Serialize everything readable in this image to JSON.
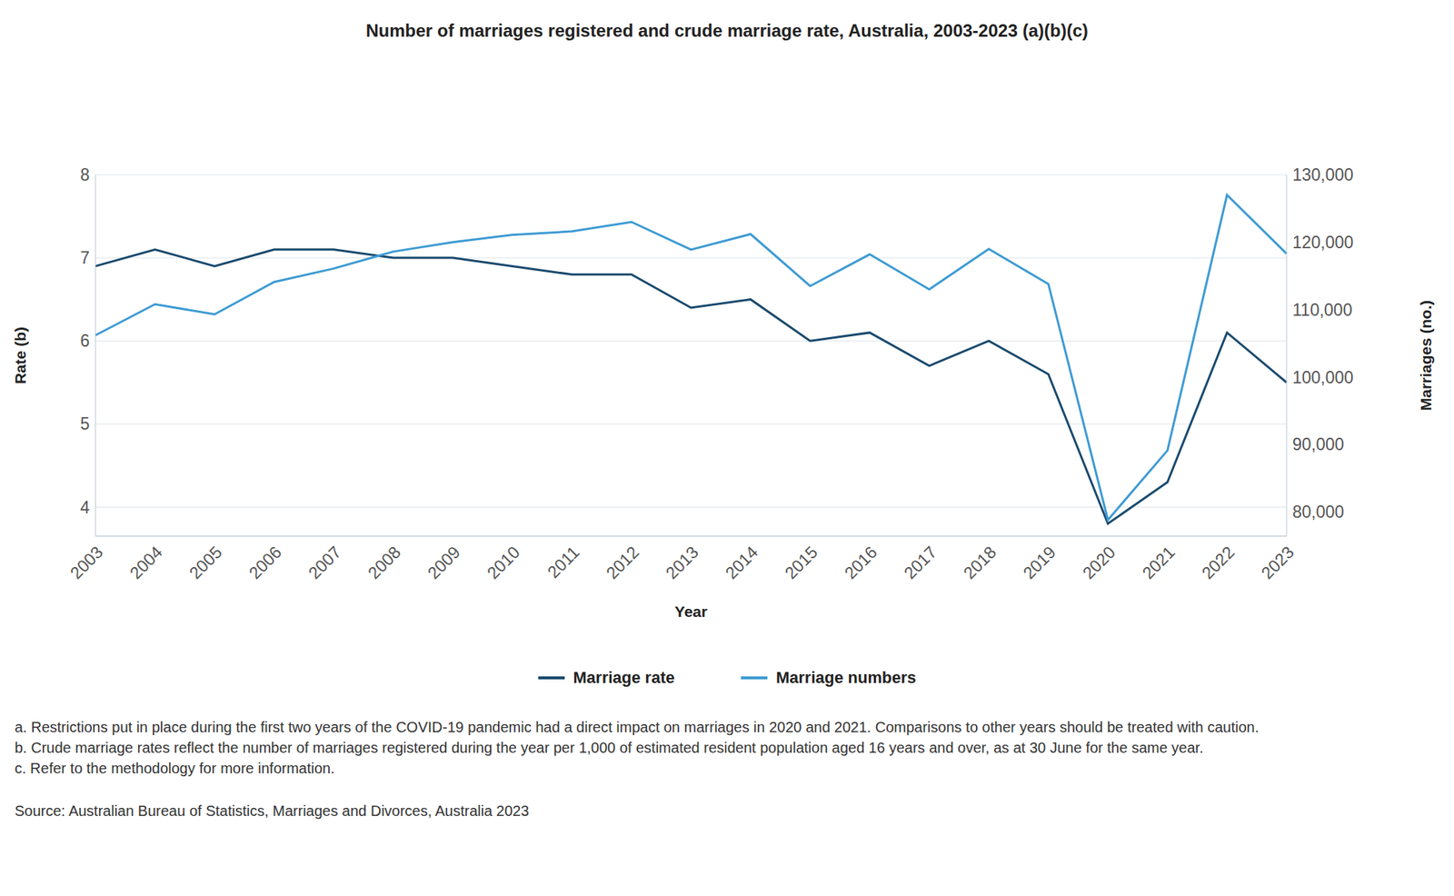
{
  "chart_data": {
    "type": "line",
    "title": "Number of marriages registered and crude marriage rate, Australia, 2003-2023 (a)(b)(c)",
    "x_label": "Year",
    "y_label": "Rate (b)",
    "y2_label": "Marriages (no.)",
    "categories": [
      "2003",
      "2004",
      "2005",
      "2006",
      "2007",
      "2008",
      "2009",
      "2010",
      "2011",
      "2012",
      "2013",
      "2014",
      "2015",
      "2016",
      "2017",
      "2018",
      "2019",
      "2020",
      "2021",
      "2022",
      "2023"
    ],
    "series": [
      {
        "name": "Marriage rate",
        "color": "#1a4a6e",
        "values": [
          6.9,
          7.1,
          6.9,
          7.1,
          7.1,
          7.0,
          7.0,
          6.9,
          6.8,
          6.8,
          6.4,
          6.5,
          6.0,
          6.1,
          5.7,
          6.0,
          5.6,
          3.8,
          4.3,
          6.1,
          5.5
        ]
      },
      {
        "name": "Marriage numbers",
        "color": "#3e9bd3",
        "axis": "y2",
        "values": [
          106200,
          110800,
          109300,
          114100,
          116100,
          118600,
          120000,
          121100,
          121600,
          123000,
          118900,
          121200,
          113500,
          118200,
          113000,
          119000,
          113800,
          78800,
          89100,
          127000,
          118300
        ]
      }
    ],
    "ylim": [
      3.65,
      8
    ],
    "yticks": [
      4,
      5,
      6,
      7,
      8
    ],
    "y2lim": [
      76400,
      130000
    ],
    "y2ticks": [
      {
        "value": 80000,
        "label": "80,000"
      },
      {
        "value": 90000,
        "label": "90,000"
      },
      {
        "value": 100000,
        "label": "100,000"
      },
      {
        "value": 110000,
        "label": "110,000"
      },
      {
        "value": 120000,
        "label": "120,000"
      },
      {
        "value": 130000,
        "label": "130,000"
      }
    ],
    "grid": true,
    "legend": "bottom",
    "notes": [
      "a. Restrictions put in place during the first two years of the COVID-19 pandemic had a direct impact on marriages in 2020 and 2021. Comparisons to other years should be treated with caution.",
      "b. Crude marriage rates reflect the number of marriages registered during the year per 1,000 of estimated resident population aged 16 years and over, as at 30 June for the same year.",
      "c. Refer to the methodology for more information."
    ],
    "source": "Source: Australian Bureau of Statistics, Marriages and Divorces, Australia 2023"
  }
}
